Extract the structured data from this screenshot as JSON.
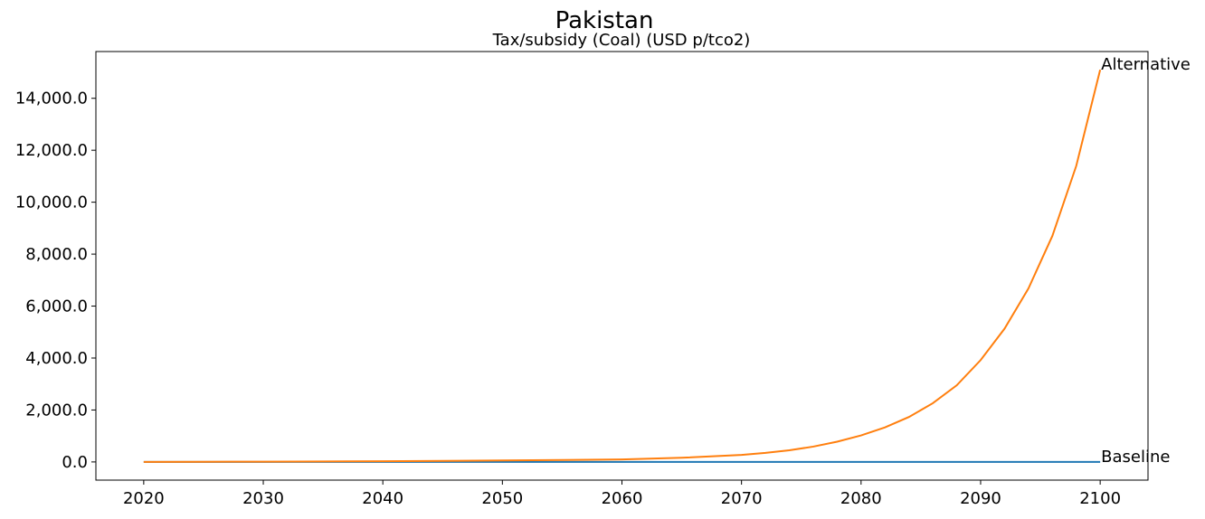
{
  "suptitle": "Pakistan",
  "chart_data": {
    "type": "line",
    "title": "Tax/subsidy (Coal) (USD p/tco2)",
    "xlabel": "",
    "ylabel": "",
    "xlim": [
      2016,
      2104
    ],
    "ylim": [
      -700,
      15800
    ],
    "x_ticks": [
      2020,
      2030,
      2040,
      2050,
      2060,
      2070,
      2080,
      2090,
      2100
    ],
    "x_tick_labels": [
      "2020",
      "2030",
      "2040",
      "2050",
      "2060",
      "2070",
      "2080",
      "2090",
      "2100"
    ],
    "y_ticks": [
      0,
      2000,
      4000,
      6000,
      8000,
      10000,
      12000,
      14000
    ],
    "y_tick_labels": [
      "0.0",
      "2,000.0",
      "4,000.0",
      "6,000.0",
      "8,000.0",
      "10,000.0",
      "12,000.0",
      "14,000.0"
    ],
    "grid": false,
    "legend": "none",
    "series": [
      {
        "name": "Baseline",
        "color": "#1f77b4",
        "x": [
          2020,
          2100
        ],
        "values": [
          0,
          0
        ]
      },
      {
        "name": "Alternative",
        "color": "#ff7f0e",
        "x": [
          2020,
          2025,
          2030,
          2035,
          2040,
          2045,
          2050,
          2055,
          2060,
          2065,
          2070,
          2072,
          2074,
          2076,
          2078,
          2080,
          2082,
          2084,
          2086,
          2088,
          2090,
          2092,
          2094,
          2096,
          2098,
          2100
        ],
        "values": [
          0,
          5,
          10,
          18,
          28,
          40,
          55,
          75,
          95,
          160,
          270,
          350,
          450,
          590,
          780,
          1020,
          1330,
          1730,
          2260,
          2950,
          3920,
          5130,
          6680,
          8700,
          11400,
          15100
        ]
      }
    ],
    "annotations": [
      "Alternative",
      "Baseline"
    ]
  }
}
